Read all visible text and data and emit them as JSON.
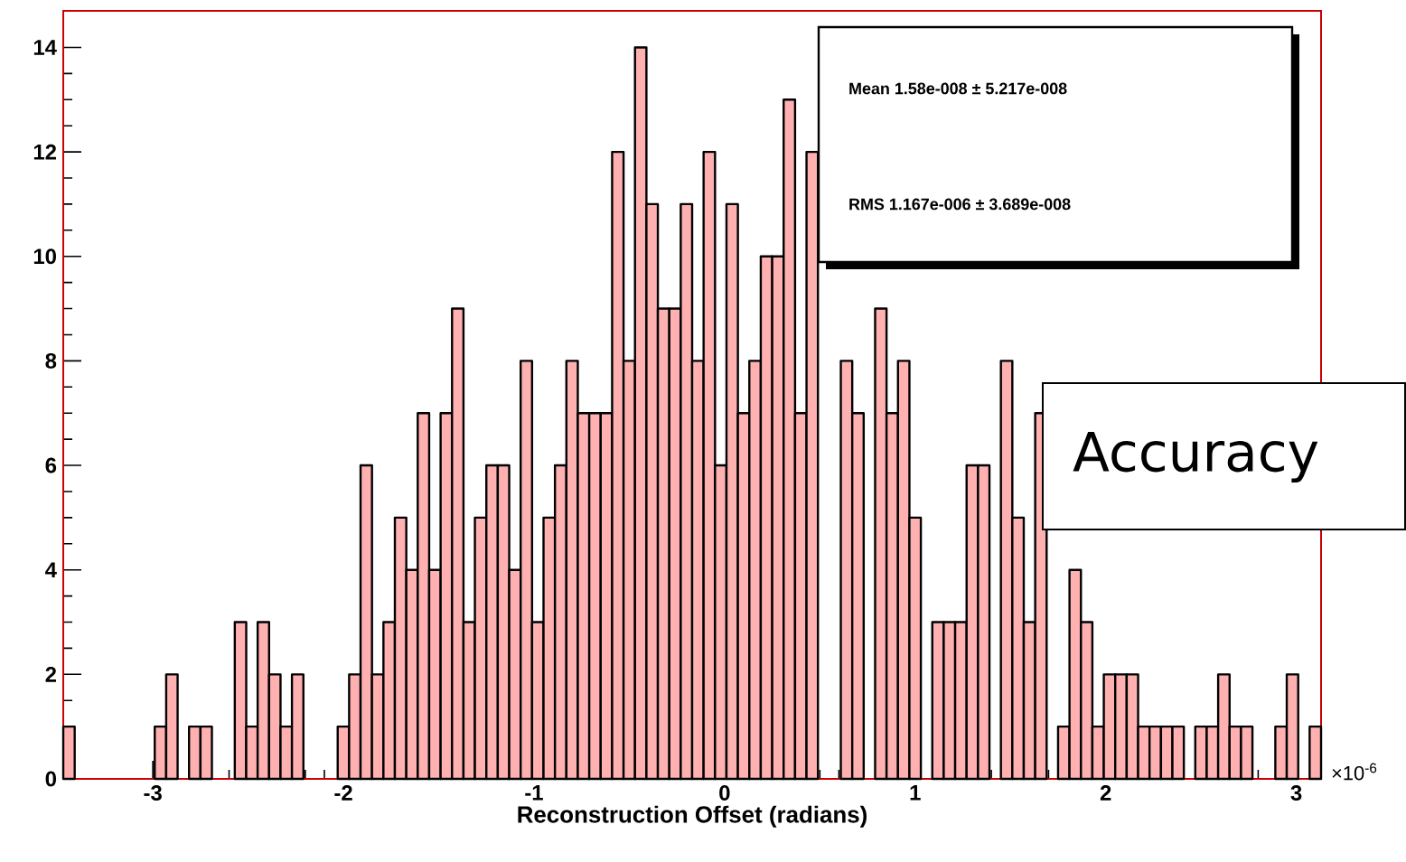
{
  "chart_data": {
    "type": "histogram",
    "xlabel": "Reconstruction Offset (radians)",
    "bins": [
      -3.47,
      -3.41,
      -3.35,
      -3.29,
      -3.23,
      -3.17,
      -3.11,
      -3.05,
      -2.99,
      -2.93,
      -2.87,
      -2.81,
      -2.75,
      -2.69,
      -2.63,
      -2.57,
      -2.51,
      -2.45,
      -2.39,
      -2.33,
      -2.27,
      -2.21,
      -2.15,
      -2.09,
      -2.03,
      -1.97,
      -1.91,
      -1.85,
      -1.79,
      -1.73,
      -1.67,
      -1.61,
      -1.55,
      -1.49,
      -1.43,
      -1.37,
      -1.31,
      -1.25,
      -1.19,
      -1.13,
      -1.07,
      -1.01,
      -0.95,
      -0.89,
      -0.83,
      -0.77,
      -0.71,
      -0.65,
      -0.59,
      -0.53,
      -0.47,
      -0.41,
      -0.35,
      -0.29,
      -0.23,
      -0.17,
      -0.11,
      -0.05,
      0.01,
      0.07,
      0.13,
      0.19,
      0.25,
      0.31,
      0.37,
      0.43,
      0.49,
      0.55,
      0.61,
      0.67,
      0.73,
      0.79,
      0.85,
      0.91,
      0.97,
      1.03,
      1.09,
      1.15,
      1.21,
      1.27,
      1.33,
      1.39,
      1.45,
      1.51,
      1.57,
      1.63,
      1.69,
      1.75,
      1.81,
      1.87,
      1.93,
      1.99,
      2.05,
      2.11,
      2.17,
      2.23,
      2.29,
      2.35,
      2.41,
      2.47,
      2.53,
      2.59,
      2.65,
      2.71,
      2.77,
      2.83,
      2.89,
      2.95,
      3.01,
      3.07,
      3.13
    ],
    "values": [
      1,
      0,
      0,
      0,
      0,
      0,
      0,
      0,
      1,
      2,
      0,
      1,
      1,
      0,
      0,
      3,
      1,
      3,
      2,
      1,
      2,
      0,
      0,
      0,
      1,
      2,
      6,
      2,
      3,
      5,
      4,
      7,
      4,
      7,
      9,
      3,
      5,
      6,
      6,
      4,
      8,
      3,
      5,
      6,
      8,
      7,
      7,
      7,
      12,
      8,
      14,
      11,
      9,
      9,
      11,
      8,
      12,
      6,
      11,
      7,
      8,
      10,
      10,
      13,
      7,
      12,
      null,
      null,
      8,
      7,
      null,
      9,
      7,
      8,
      5,
      null,
      3,
      3,
      3,
      6,
      6,
      null,
      8,
      5,
      3,
      7,
      null,
      1,
      4,
      3,
      1,
      2,
      2,
      2,
      1,
      1,
      1,
      1,
      0,
      1,
      1,
      2,
      1,
      1,
      0,
      0,
      1,
      2,
      0,
      1
    ],
    "color": "#ffb0b0",
    "xlim": [
      -3.47,
      3.13
    ],
    "ylim": [
      0,
      14.7
    ],
    "xticks": [
      -3,
      -2,
      -1,
      0,
      1,
      2,
      3
    ],
    "yticks": [
      0,
      2,
      4,
      6,
      8,
      10,
      12,
      14
    ],
    "annotations": [
      "Mean   1.58e-008 ± 5.217e-008",
      "RMS   1.167e-006 ± 3.689e-008",
      "Accuracy",
      "×10$^{-6}$"
    ]
  }
}
